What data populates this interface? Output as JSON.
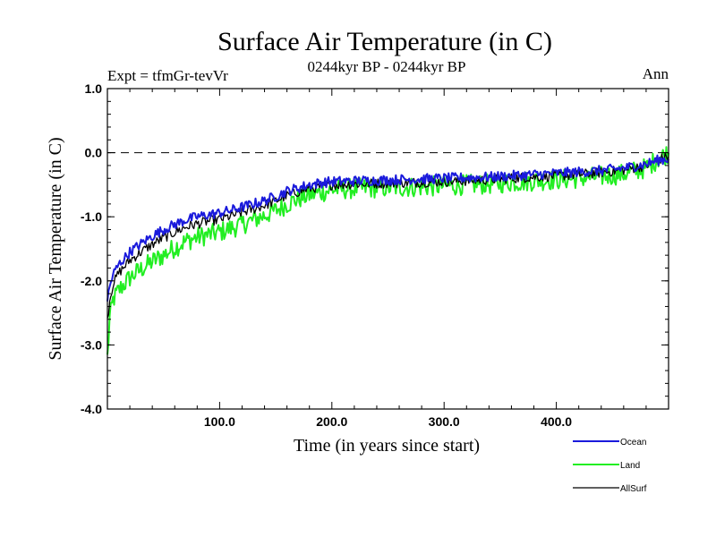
{
  "chart_data": {
    "type": "line",
    "title": "Surface Air Temperature (in C)",
    "subtitle": "0244kyr BP - 0244kyr BP",
    "left_label": "Expt = tfmGr-tevVr",
    "right_label": "Ann",
    "xlabel": "Time (in years since start)",
    "ylabel": "Surface Air Temperature (in C)",
    "xlim": [
      0,
      500
    ],
    "ylim": [
      -4.0,
      1.0
    ],
    "x_ticks": [
      100,
      200,
      300,
      400
    ],
    "x_tick_labels": [
      "100.0",
      "200.0",
      "300.0",
      "400.0"
    ],
    "y_ticks": [
      1.0,
      0.0,
      -1.0,
      -2.0,
      -3.0,
      -4.0
    ],
    "y_tick_labels": [
      "1.0",
      "0.0",
      "-1.0",
      "-2.0",
      "-3.0",
      "-4.0"
    ],
    "reference_line": 0.0,
    "series": [
      {
        "name": "Ocean",
        "color": "#1a1adc",
        "x": [
          0,
          2,
          5,
          10,
          15,
          20,
          30,
          40,
          50,
          60,
          70,
          80,
          90,
          100,
          110,
          120,
          130,
          140,
          150,
          160,
          170,
          180,
          190,
          200,
          220,
          240,
          260,
          280,
          300,
          320,
          340,
          360,
          380,
          400,
          420,
          440,
          460,
          480,
          490,
          500
        ],
        "values": [
          -2.3,
          -2.1,
          -1.9,
          -1.75,
          -1.65,
          -1.55,
          -1.42,
          -1.3,
          -1.2,
          -1.12,
          -1.05,
          -1.0,
          -0.97,
          -0.94,
          -0.9,
          -0.85,
          -0.8,
          -0.75,
          -0.68,
          -0.6,
          -0.55,
          -0.5,
          -0.47,
          -0.45,
          -0.44,
          -0.43,
          -0.42,
          -0.41,
          -0.4,
          -0.39,
          -0.38,
          -0.36,
          -0.34,
          -0.32,
          -0.3,
          -0.28,
          -0.24,
          -0.18,
          -0.12,
          -0.1
        ]
      },
      {
        "name": "Land",
        "color": "#22ee22",
        "x": [
          0,
          2,
          5,
          10,
          15,
          20,
          30,
          40,
          50,
          60,
          70,
          80,
          90,
          100,
          110,
          120,
          130,
          140,
          150,
          160,
          170,
          180,
          190,
          200,
          220,
          240,
          260,
          280,
          300,
          320,
          340,
          360,
          380,
          400,
          420,
          440,
          460,
          480,
          490,
          500
        ],
        "values": [
          -3.2,
          -2.6,
          -2.3,
          -2.15,
          -2.05,
          -1.95,
          -1.82,
          -1.7,
          -1.6,
          -1.48,
          -1.38,
          -1.32,
          -1.28,
          -1.24,
          -1.18,
          -1.12,
          -1.05,
          -0.98,
          -0.9,
          -0.8,
          -0.72,
          -0.66,
          -0.62,
          -0.58,
          -0.56,
          -0.55,
          -0.54,
          -0.53,
          -0.52,
          -0.5,
          -0.49,
          -0.46,
          -0.44,
          -0.42,
          -0.4,
          -0.37,
          -0.33,
          -0.24,
          -0.1,
          0.0
        ]
      },
      {
        "name": "AllSurf",
        "color": "#000000",
        "x": [
          0,
          2,
          5,
          10,
          15,
          20,
          30,
          40,
          50,
          60,
          70,
          80,
          90,
          100,
          110,
          120,
          130,
          140,
          150,
          160,
          170,
          180,
          190,
          200,
          220,
          240,
          260,
          280,
          300,
          320,
          340,
          360,
          380,
          400,
          420,
          440,
          460,
          480,
          490,
          500
        ],
        "values": [
          -2.6,
          -2.3,
          -2.05,
          -1.88,
          -1.78,
          -1.68,
          -1.55,
          -1.43,
          -1.33,
          -1.24,
          -1.16,
          -1.11,
          -1.07,
          -1.04,
          -0.99,
          -0.93,
          -0.88,
          -0.82,
          -0.75,
          -0.67,
          -0.61,
          -0.56,
          -0.53,
          -0.5,
          -0.49,
          -0.48,
          -0.47,
          -0.46,
          -0.45,
          -0.44,
          -0.42,
          -0.4,
          -0.38,
          -0.36,
          -0.34,
          -0.31,
          -0.27,
          -0.2,
          -0.11,
          -0.06
        ]
      }
    ],
    "legend": [
      "Ocean",
      "Land",
      "AllSurf"
    ],
    "legend_position": "bottom-right"
  }
}
